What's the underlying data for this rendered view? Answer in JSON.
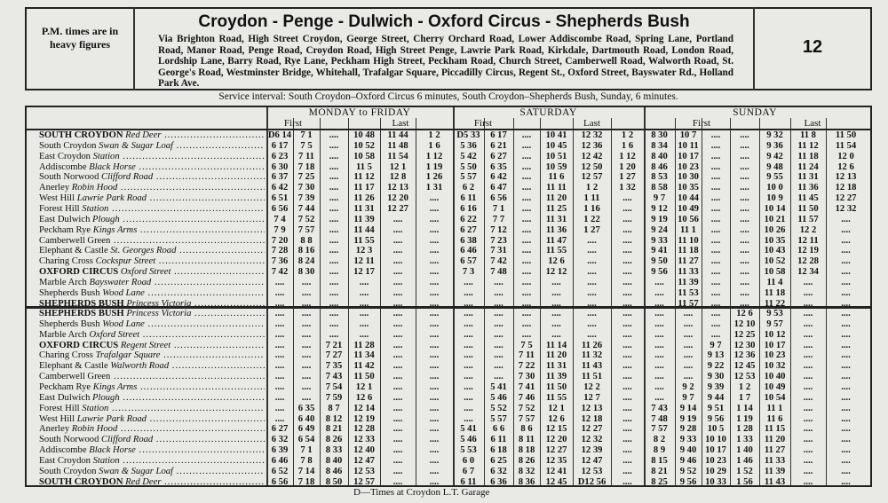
{
  "header": {
    "note": "P.M. times are in heavy figures",
    "title": "Croydon - Penge - Dulwich - Oxford Circus - Shepherds Bush",
    "via": "Via Brighton Road, High Street Croydon, George Street, Cherry Orchard Road, Lower Addiscombe Road, Spring Lane, Portland Road, Manor Road, Penge Road, Croydon Road, High Street Penge, Lawrie Park Road, Kirkdale, Dartmouth Road, London Road, Lordship Lane, Barry Road, Rye Lane, Peckham High Street, Peckham Road, Church Street, Camberwell Road, Walworth Road, St. George's Road, Westminster Bridge, Whitehall, Trafalgar Square, Piccadilly Circus, Regent St., Oxford Street, Bayswater Rd., Holland Park Ave.",
    "route": "12"
  },
  "service_interval": "Service interval: South Croydon–Oxford Circus 6 minutes, South Croydon–Shepherds Bush, Sunday, 6 minutes.",
  "table": {
    "days": [
      {
        "name": "MONDAY to FRIDAY",
        "first": "First",
        "last": "Last"
      },
      {
        "name": "SATURDAY",
        "first": "First",
        "last": "Last"
      },
      {
        "name": "SUNDAY",
        "first": "First",
        "last": "Last"
      }
    ],
    "upper": [
      {
        "place": "SOUTH CROYDON",
        "detail": "Red Deer",
        "times": [
          "D6 14",
          "7 1",
          "....",
          "10 48",
          "11 44",
          "1 2",
          "D5 33",
          "6 17",
          "....",
          "10 41",
          "12 32",
          "1 2",
          "8 30",
          "10 7",
          "....",
          "....",
          "9 32",
          "11 8",
          "11 50"
        ]
      },
      {
        "place": "South Croydon",
        "detail": "Swan & Sugar Loaf",
        "times": [
          "6 17",
          "7 5",
          "....",
          "10 52",
          "11 48",
          "1 6",
          "5 36",
          "6 21",
          "....",
          "10 45",
          "12 36",
          "1 6",
          "8 34",
          "10 11",
          "....",
          "....",
          "9 36",
          "11 12",
          "11 54"
        ]
      },
      {
        "place": "East Croydon",
        "detail": "Station",
        "times": [
          "6 23",
          "7 11",
          "....",
          "10 58",
          "11 54",
          "1 12",
          "5 42",
          "6 27",
          "....",
          "10 51",
          "12 42",
          "1 12",
          "8 40",
          "10 17",
          "....",
          "....",
          "9 42",
          "11 18",
          "12 0"
        ]
      },
      {
        "place": "Addiscombe",
        "detail": "Black Horse",
        "times": [
          "6 30",
          "7 18",
          "....",
          "11 5",
          "12 1",
          "1 19",
          "5 50",
          "6 35",
          "....",
          "10 59",
          "12 50",
          "1 20",
          "8 46",
          "10 23",
          "....",
          "....",
          "9 48",
          "11 24",
          "12 6"
        ]
      },
      {
        "place": "South Norwood",
        "detail": "Clifford Road",
        "times": [
          "6 37",
          "7 25",
          "....",
          "11 12",
          "12 8",
          "1 26",
          "5 57",
          "6 42",
          "....",
          "11 6",
          "12 57",
          "1 27",
          "8 53",
          "10 30",
          "....",
          "....",
          "9 55",
          "11 31",
          "12 13"
        ]
      },
      {
        "place": "Anerley",
        "detail": "Robin Hood",
        "times": [
          "6 42",
          "7 30",
          "....",
          "11 17",
          "12 13",
          "1 31",
          "6 2",
          "6 47",
          "....",
          "11 11",
          "1 2",
          "1 32",
          "8 58",
          "10 35",
          "....",
          "....",
          "10 0",
          "11 36",
          "12 18"
        ]
      },
      {
        "place": "West Hill",
        "detail": "Lawrie Park Road",
        "times": [
          "6 51",
          "7 39",
          "....",
          "11 26",
          "12 20",
          "....",
          "6 11",
          "6 56",
          "....",
          "11 20",
          "1 11",
          "....",
          "9 7",
          "10 44",
          "....",
          "....",
          "10 9",
          "11 45",
          "12 27"
        ]
      },
      {
        "place": "Forest Hill",
        "detail": "Station",
        "times": [
          "6 56",
          "7 44",
          "....",
          "11 31",
          "12 27",
          "....",
          "6 16",
          "7 1",
          "....",
          "11 25",
          "1 16",
          "....",
          "9 12",
          "10 49",
          "....",
          "....",
          "10 14",
          "11 50",
          "12 32"
        ]
      },
      {
        "place": "East Dulwich",
        "detail": "Plough",
        "times": [
          "7 4",
          "7 52",
          "....",
          "11 39",
          "....",
          "....",
          "6 22",
          "7 7",
          "....",
          "11 31",
          "1 22",
          "....",
          "9 19",
          "10 56",
          "....",
          "....",
          "10 21",
          "11 57",
          "...."
        ]
      },
      {
        "place": "Peckham Rye",
        "detail": "Kings Arms",
        "times": [
          "7 9",
          "7 57",
          "....",
          "11 44",
          "....",
          "....",
          "6 27",
          "7 12",
          "....",
          "11 36",
          "1 27",
          "....",
          "9 24",
          "11 1",
          "....",
          "....",
          "10 26",
          "12 2",
          "...."
        ]
      },
      {
        "place": "Camberwell Green",
        "detail": "",
        "times": [
          "7 20",
          "8 8",
          "....",
          "11 55",
          "....",
          "....",
          "6 38",
          "7 23",
          "....",
          "11 47",
          "....",
          "....",
          "9 33",
          "11 10",
          "....",
          "....",
          "10 35",
          "12 11",
          "...."
        ]
      },
      {
        "place": "Elephant & Castle",
        "detail": "St. Georges Road",
        "times": [
          "7 28",
          "8 16",
          "....",
          "12 3",
          "....",
          "....",
          "6 46",
          "7 31",
          "....",
          "11 55",
          "....",
          "....",
          "9 41",
          "11 18",
          "....",
          "....",
          "10 43",
          "12 19",
          "...."
        ]
      },
      {
        "place": "Charing Cross",
        "detail": "Cockspur Street",
        "times": [
          "7 36",
          "8 24",
          "....",
          "12 11",
          "....",
          "....",
          "6 57",
          "7 42",
          "....",
          "12 6",
          "....",
          "....",
          "9 50",
          "11 27",
          "....",
          "....",
          "10 52",
          "12 28",
          "...."
        ]
      },
      {
        "place": "OXFORD CIRCUS",
        "detail": "Oxford Street",
        "times": [
          "7 42",
          "8 30",
          "....",
          "12 17",
          "....",
          "....",
          "7 3",
          "7 48",
          "....",
          "12 12",
          "....",
          "....",
          "9 56",
          "11 33",
          "....",
          "....",
          "10 58",
          "12 34",
          "...."
        ]
      },
      {
        "place": "Marble Arch",
        "detail": "Bayswater Road",
        "times": [
          "....",
          "....",
          "....",
          "....",
          "....",
          "....",
          "....",
          "....",
          "....",
          "....",
          "....",
          "....",
          "....",
          "11 39",
          "....",
          "....",
          "11 4",
          "....",
          "...."
        ]
      },
      {
        "place": "Shepherds Bush",
        "detail": "Wood Lane",
        "times": [
          "....",
          "....",
          "....",
          "....",
          "....",
          "....",
          "....",
          "....",
          "....",
          "....",
          "....",
          "....",
          "....",
          "11 53",
          "....",
          "....",
          "11 18",
          "....",
          "...."
        ]
      },
      {
        "place": "SHEPHERDS BUSH",
        "detail": "Princess Victoria",
        "times": [
          "....",
          "....",
          "....",
          "....",
          "....",
          "....",
          "....",
          "....",
          "....",
          "....",
          "....",
          "....",
          "....",
          "11 57",
          "....",
          "....",
          "11 22",
          "....",
          "...."
        ]
      }
    ],
    "lower": [
      {
        "place": "SHEPHERDS BUSH",
        "detail": "Princess Victoria",
        "times": [
          "....",
          "....",
          "....",
          "....",
          "....",
          "....",
          "....",
          "....",
          "....",
          "....",
          "....",
          "....",
          "....",
          "....",
          "....",
          "12 6",
          "9 53",
          "....",
          "...."
        ]
      },
      {
        "place": "Shepherds Bush",
        "detail": "Wood Lane",
        "times": [
          "....",
          "....",
          "....",
          "....",
          "....",
          "....",
          "....",
          "....",
          "....",
          "....",
          "....",
          "....",
          "....",
          "....",
          "....",
          "12 10",
          "9 57",
          "....",
          "...."
        ]
      },
      {
        "place": "Marble Arch",
        "detail": "Oxford Street",
        "times": [
          "....",
          "....",
          "....",
          "....",
          "....",
          "....",
          "....",
          "....",
          "....",
          "....",
          "....",
          "....",
          "....",
          "....",
          "....",
          "12 25",
          "10 12",
          "....",
          "...."
        ]
      },
      {
        "place": "OXFORD CIRCUS",
        "detail": "Regent Street",
        "times": [
          "....",
          "....",
          "7 21",
          "11 28",
          "....",
          "....",
          "....",
          "....",
          "7 5",
          "11 14",
          "11 26",
          "....",
          "....",
          "....",
          "9 7",
          "12 30",
          "10 17",
          "....",
          "...."
        ]
      },
      {
        "place": "Charing Cross",
        "detail": "Trafalgar Square",
        "times": [
          "....",
          "....",
          "7 27",
          "11 34",
          "....",
          "....",
          "....",
          "....",
          "7 11",
          "11 20",
          "11 32",
          "....",
          "....",
          "....",
          "9 13",
          "12 36",
          "10 23",
          "....",
          "...."
        ]
      },
      {
        "place": "Elephant & Castle",
        "detail": "Walworth Road",
        "times": [
          "....",
          "....",
          "7 35",
          "11 42",
          "....",
          "....",
          "....",
          "....",
          "7 22",
          "11 31",
          "11 43",
          "....",
          "....",
          "....",
          "9 22",
          "12 45",
          "10 32",
          "....",
          "...."
        ]
      },
      {
        "place": "Camberwell Green",
        "detail": "",
        "times": [
          "....",
          "....",
          "7 43",
          "11 50",
          "....",
          "....",
          "....",
          "....",
          "7 30",
          "11 39",
          "11 51",
          "....",
          "....",
          "....",
          "9 30",
          "12 53",
          "10 40",
          "....",
          "...."
        ]
      },
      {
        "place": "Peckham Rye",
        "detail": "Kings Arms",
        "times": [
          "....",
          "....",
          "7 54",
          "12 1",
          "....",
          "....",
          "....",
          "5 41",
          "7 41",
          "11 50",
          "12 2",
          "....",
          "....",
          "9 2",
          "9 39",
          "1 2",
          "10 49",
          "....",
          "...."
        ]
      },
      {
        "place": "East Dulwich",
        "detail": "Plough",
        "times": [
          "....",
          "....",
          "7 59",
          "12 6",
          "....",
          "....",
          "....",
          "5 46",
          "7 46",
          "11 55",
          "12 7",
          "....",
          "....",
          "9 7",
          "9 44",
          "1 7",
          "10 54",
          "....",
          "...."
        ]
      },
      {
        "place": "Forest Hill",
        "detail": "Station",
        "times": [
          "....",
          "6 35",
          "8 7",
          "12 14",
          "....",
          "....",
          "....",
          "5 52",
          "7 52",
          "12 1",
          "12 13",
          "....",
          "7 43",
          "9 14",
          "9 51",
          "1 14",
          "11 1",
          "....",
          "...."
        ]
      },
      {
        "place": "West Hill",
        "detail": "Lawrie Park Road",
        "times": [
          "....",
          "6 40",
          "8 12",
          "12 19",
          "....",
          "....",
          "....",
          "5 57",
          "7 57",
          "12 6",
          "12 18",
          "....",
          "7 48",
          "9 19",
          "9 56",
          "1 19",
          "11 6",
          "....",
          "...."
        ]
      },
      {
        "place": "Anerley",
        "detail": "Robin Hood",
        "times": [
          "6 27",
          "6 49",
          "8 21",
          "12 28",
          "....",
          "....",
          "5 41",
          "6 6",
          "8 6",
          "12 15",
          "12 27",
          "....",
          "7 57",
          "9 28",
          "10 5",
          "1 28",
          "11 15",
          "....",
          "...."
        ]
      },
      {
        "place": "South Norwood",
        "detail": "Clifford Road",
        "times": [
          "6 32",
          "6 54",
          "8 26",
          "12 33",
          "....",
          "....",
          "5 46",
          "6 11",
          "8 11",
          "12 20",
          "12 32",
          "....",
          "8 2",
          "9 33",
          "10 10",
          "1 33",
          "11 20",
          "....",
          "...."
        ]
      },
      {
        "place": "Addiscombe",
        "detail": "Black Horse",
        "times": [
          "6 39",
          "7 1",
          "8 33",
          "12 40",
          "....",
          "....",
          "5 53",
          "6 18",
          "8 18",
          "12 27",
          "12 39",
          "....",
          "8 9",
          "9 40",
          "10 17",
          "1 40",
          "11 27",
          "....",
          "...."
        ]
      },
      {
        "place": "East Croydon",
        "detail": "Station",
        "times": [
          "6 46",
          "7 8",
          "8 40",
          "12 47",
          "....",
          "....",
          "6 0",
          "6 25",
          "8 26",
          "12 35",
          "12 47",
          "....",
          "8 15",
          "9 46",
          "10 23",
          "1 46",
          "11 33",
          "....",
          "...."
        ]
      },
      {
        "place": "South Croydon",
        "detail": "Swan & Sugar Loaf",
        "times": [
          "6 52",
          "7 14",
          "8 46",
          "12 53",
          "....",
          "....",
          "6 7",
          "6 32",
          "8 32",
          "12 41",
          "12 53",
          "....",
          "8 21",
          "9 52",
          "10 29",
          "1 52",
          "11 39",
          "....",
          "...."
        ]
      },
      {
        "place": "SOUTH CROYDON",
        "detail": "Red Deer",
        "times": [
          "6 56",
          "7 18",
          "8 50",
          "12 57",
          "....",
          "....",
          "6 11",
          "6 36",
          "8 36",
          "12 45",
          "D12 56",
          "....",
          "8 25",
          "9 56",
          "10 33",
          "1 56",
          "11 43",
          "....",
          "...."
        ]
      }
    ]
  },
  "footnote": "D—Times at Croydon L.T. Garage"
}
